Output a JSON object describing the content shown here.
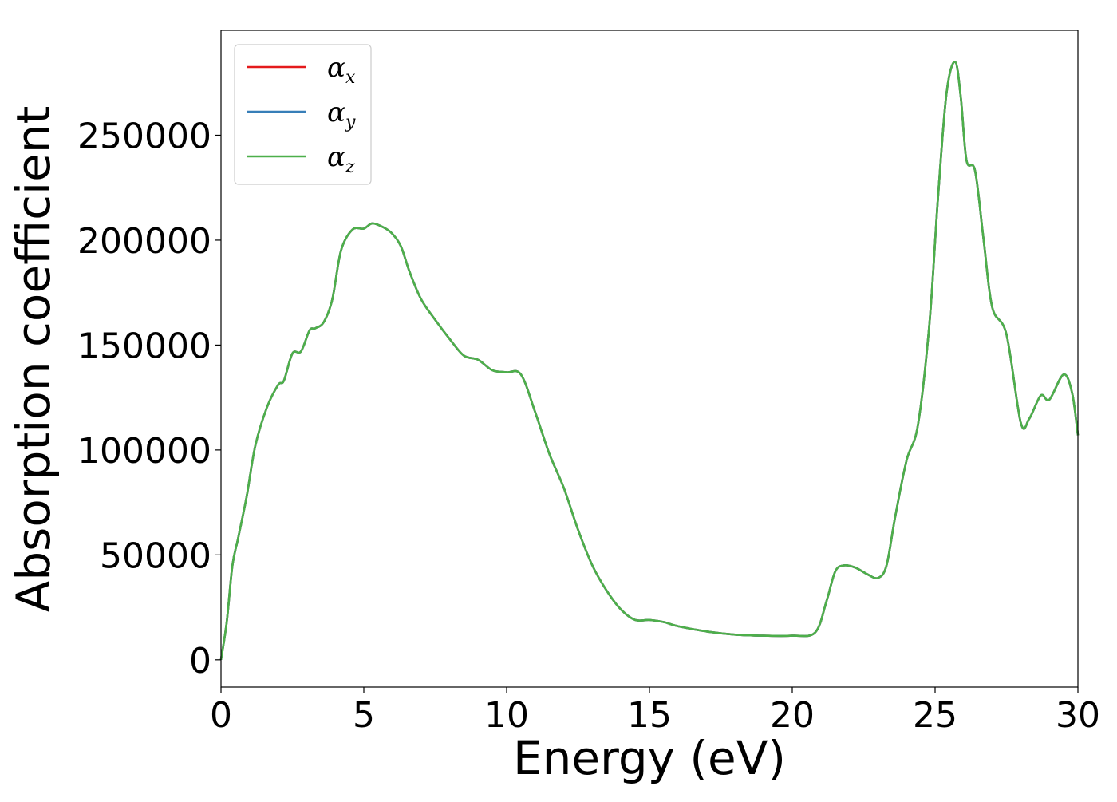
{
  "chart_data": {
    "type": "line",
    "xlabel": "Energy (eV)",
    "ylabel": "Absorption coefficient",
    "xlim": [
      0,
      30
    ],
    "ylim": [
      -13000,
      300000
    ],
    "x_ticks": [
      0,
      5,
      10,
      15,
      20,
      25,
      30
    ],
    "y_ticks": [
      0,
      50000,
      100000,
      150000,
      200000,
      250000
    ],
    "legend_position": "top-left",
    "grid": false,
    "legend": [
      {
        "symbol": "α",
        "subscript": "x",
        "color": "#e41a1c"
      },
      {
        "symbol": "α",
        "subscript": "y",
        "color": "#377eb8"
      },
      {
        "symbol": "α",
        "subscript": "z",
        "color": "#4daf4a"
      }
    ],
    "series": [
      {
        "name": "αx",
        "color": "#e41a1c",
        "x": [
          0,
          0.2,
          0.4,
          0.6,
          0.9,
          1.2,
          1.6,
          2.0,
          2.2,
          2.5,
          2.8,
          3.1,
          3.3,
          3.6,
          3.9,
          4.2,
          4.6,
          5.0,
          5.3,
          5.7,
          6.0,
          6.3,
          6.6,
          7.0,
          7.5,
          8.0,
          8.5,
          9.0,
          9.5,
          10.0,
          10.5,
          11.0,
          11.5,
          12.0,
          12.5,
          13.0,
          13.5,
          14.0,
          14.5,
          15.0,
          15.5,
          16.0,
          17.0,
          18.0,
          19.0,
          20.0,
          20.8,
          21.2,
          21.5,
          21.8,
          22.2,
          22.6,
          23.0,
          23.3,
          23.6,
          24.0,
          24.4,
          24.8,
          25.1,
          25.4,
          25.7,
          25.9,
          26.1,
          26.4,
          26.7,
          27.0,
          27.5,
          28.0,
          28.3,
          28.7,
          29.0,
          29.5,
          29.8,
          30.0
        ],
        "values": [
          0,
          18000,
          45000,
          58000,
          78000,
          102000,
          120000,
          131000,
          133000,
          146000,
          147000,
          157000,
          158000,
          161000,
          172000,
          195000,
          205000,
          205500,
          208000,
          206000,
          203000,
          197000,
          185000,
          172000,
          162000,
          153000,
          145000,
          143000,
          138000,
          137000,
          136000,
          118000,
          98000,
          82000,
          62000,
          45000,
          33000,
          24000,
          19000,
          19000,
          18000,
          16000,
          13500,
          12000,
          11500,
          11500,
          13000,
          28000,
          42000,
          45000,
          44000,
          41000,
          39000,
          45000,
          68000,
          95000,
          112000,
          160000,
          220000,
          270000,
          285000,
          268000,
          238000,
          233000,
          200000,
          168000,
          155000,
          113000,
          115000,
          126000,
          124000,
          136000,
          127000,
          107000
        ]
      },
      {
        "name": "αy",
        "color": "#377eb8",
        "x": [
          0,
          0.2,
          0.4,
          0.6,
          0.9,
          1.2,
          1.6,
          2.0,
          2.2,
          2.5,
          2.8,
          3.1,
          3.3,
          3.6,
          3.9,
          4.2,
          4.6,
          5.0,
          5.3,
          5.7,
          6.0,
          6.3,
          6.6,
          7.0,
          7.5,
          8.0,
          8.5,
          9.0,
          9.5,
          10.0,
          10.5,
          11.0,
          11.5,
          12.0,
          12.5,
          13.0,
          13.5,
          14.0,
          14.5,
          15.0,
          15.5,
          16.0,
          17.0,
          18.0,
          19.0,
          20.0,
          20.8,
          21.2,
          21.5,
          21.8,
          22.2,
          22.6,
          23.0,
          23.3,
          23.6,
          24.0,
          24.4,
          24.8,
          25.1,
          25.4,
          25.7,
          25.9,
          26.1,
          26.4,
          26.7,
          27.0,
          27.5,
          28.0,
          28.3,
          28.7,
          29.0,
          29.5,
          29.8,
          30.0
        ],
        "values": [
          0,
          18000,
          45000,
          58000,
          78000,
          102000,
          120000,
          131000,
          133000,
          146000,
          147000,
          157000,
          158000,
          161000,
          172000,
          195000,
          205000,
          205500,
          208000,
          206000,
          203000,
          197000,
          185000,
          172000,
          162000,
          153000,
          145000,
          143000,
          138000,
          137000,
          136000,
          118000,
          98000,
          82000,
          62000,
          45000,
          33000,
          24000,
          19000,
          19000,
          18000,
          16000,
          13500,
          12000,
          11500,
          11500,
          13000,
          28000,
          42000,
          45000,
          44000,
          41000,
          39000,
          45000,
          68000,
          95000,
          112000,
          160000,
          220000,
          270000,
          285000,
          268000,
          238000,
          233000,
          200000,
          168000,
          155000,
          113000,
          115000,
          126000,
          124000,
          136000,
          127000,
          107000
        ]
      },
      {
        "name": "αz",
        "color": "#4daf4a",
        "x": [
          0,
          0.2,
          0.4,
          0.6,
          0.9,
          1.2,
          1.6,
          2.0,
          2.2,
          2.5,
          2.8,
          3.1,
          3.3,
          3.6,
          3.9,
          4.2,
          4.6,
          5.0,
          5.3,
          5.7,
          6.0,
          6.3,
          6.6,
          7.0,
          7.5,
          8.0,
          8.5,
          9.0,
          9.5,
          10.0,
          10.5,
          11.0,
          11.5,
          12.0,
          12.5,
          13.0,
          13.5,
          14.0,
          14.5,
          15.0,
          15.5,
          16.0,
          17.0,
          18.0,
          19.0,
          20.0,
          20.8,
          21.2,
          21.5,
          21.8,
          22.2,
          22.6,
          23.0,
          23.3,
          23.6,
          24.0,
          24.4,
          24.8,
          25.1,
          25.4,
          25.7,
          25.9,
          26.1,
          26.4,
          26.7,
          27.0,
          27.5,
          28.0,
          28.3,
          28.7,
          29.0,
          29.5,
          29.8,
          30.0
        ],
        "values": [
          0,
          18000,
          45000,
          58000,
          78000,
          102000,
          120000,
          131000,
          133000,
          146000,
          147000,
          157000,
          158000,
          161000,
          172000,
          195000,
          205000,
          205500,
          208000,
          206000,
          203000,
          197000,
          185000,
          172000,
          162000,
          153000,
          145000,
          143000,
          138000,
          137000,
          136000,
          118000,
          98000,
          82000,
          62000,
          45000,
          33000,
          24000,
          19000,
          19000,
          18000,
          16000,
          13500,
          12000,
          11500,
          11500,
          13000,
          28000,
          42000,
          45000,
          44000,
          41000,
          39000,
          45000,
          68000,
          95000,
          112000,
          160000,
          220000,
          270000,
          285000,
          268000,
          238000,
          233000,
          200000,
          168000,
          155000,
          113000,
          115000,
          126000,
          124000,
          136000,
          127000,
          107000
        ]
      }
    ]
  }
}
